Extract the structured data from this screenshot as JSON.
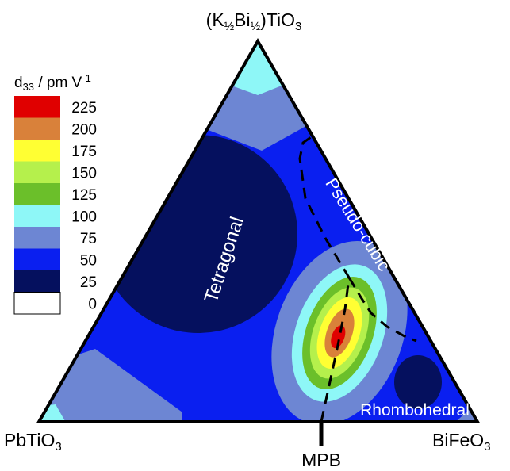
{
  "apex_labels": {
    "top_main": "(K",
    "top_sub1": "½",
    "top_mid": "Bi",
    "top_sub2": "½",
    "top_end": ")TiO",
    "top_sub3": "3",
    "left_main": "PbTiO",
    "left_sub": "3",
    "right_main": "BiFeO",
    "right_sub": "3"
  },
  "mpb_label": "MPB",
  "regions": {
    "tetragonal": "Tetragonal",
    "pseudo_cubic": "Pseudo-cubic",
    "rhombohedral": "Rhombohedral"
  },
  "legend": {
    "title_main": "d",
    "title_sub": "33",
    "title_rest": " / pm V",
    "title_sup": "-1",
    "items": [
      {
        "value": "225",
        "color": "#e00000"
      },
      {
        "value": "200",
        "color": "#d9813a"
      },
      {
        "value": "175",
        "color": "#ffff33"
      },
      {
        "value": "150",
        "color": "#b5f04c"
      },
      {
        "value": "125",
        "color": "#6bbf2a"
      },
      {
        "value": "100",
        "color": "#8ef7f7"
      },
      {
        "value": "75",
        "color": "#6d86d3"
      },
      {
        "value": "50",
        "color": "#0a1ff0"
      },
      {
        "value": "25",
        "color": "#05105e"
      },
      {
        "value": "0",
        "color": "#ffffff"
      }
    ]
  }
}
